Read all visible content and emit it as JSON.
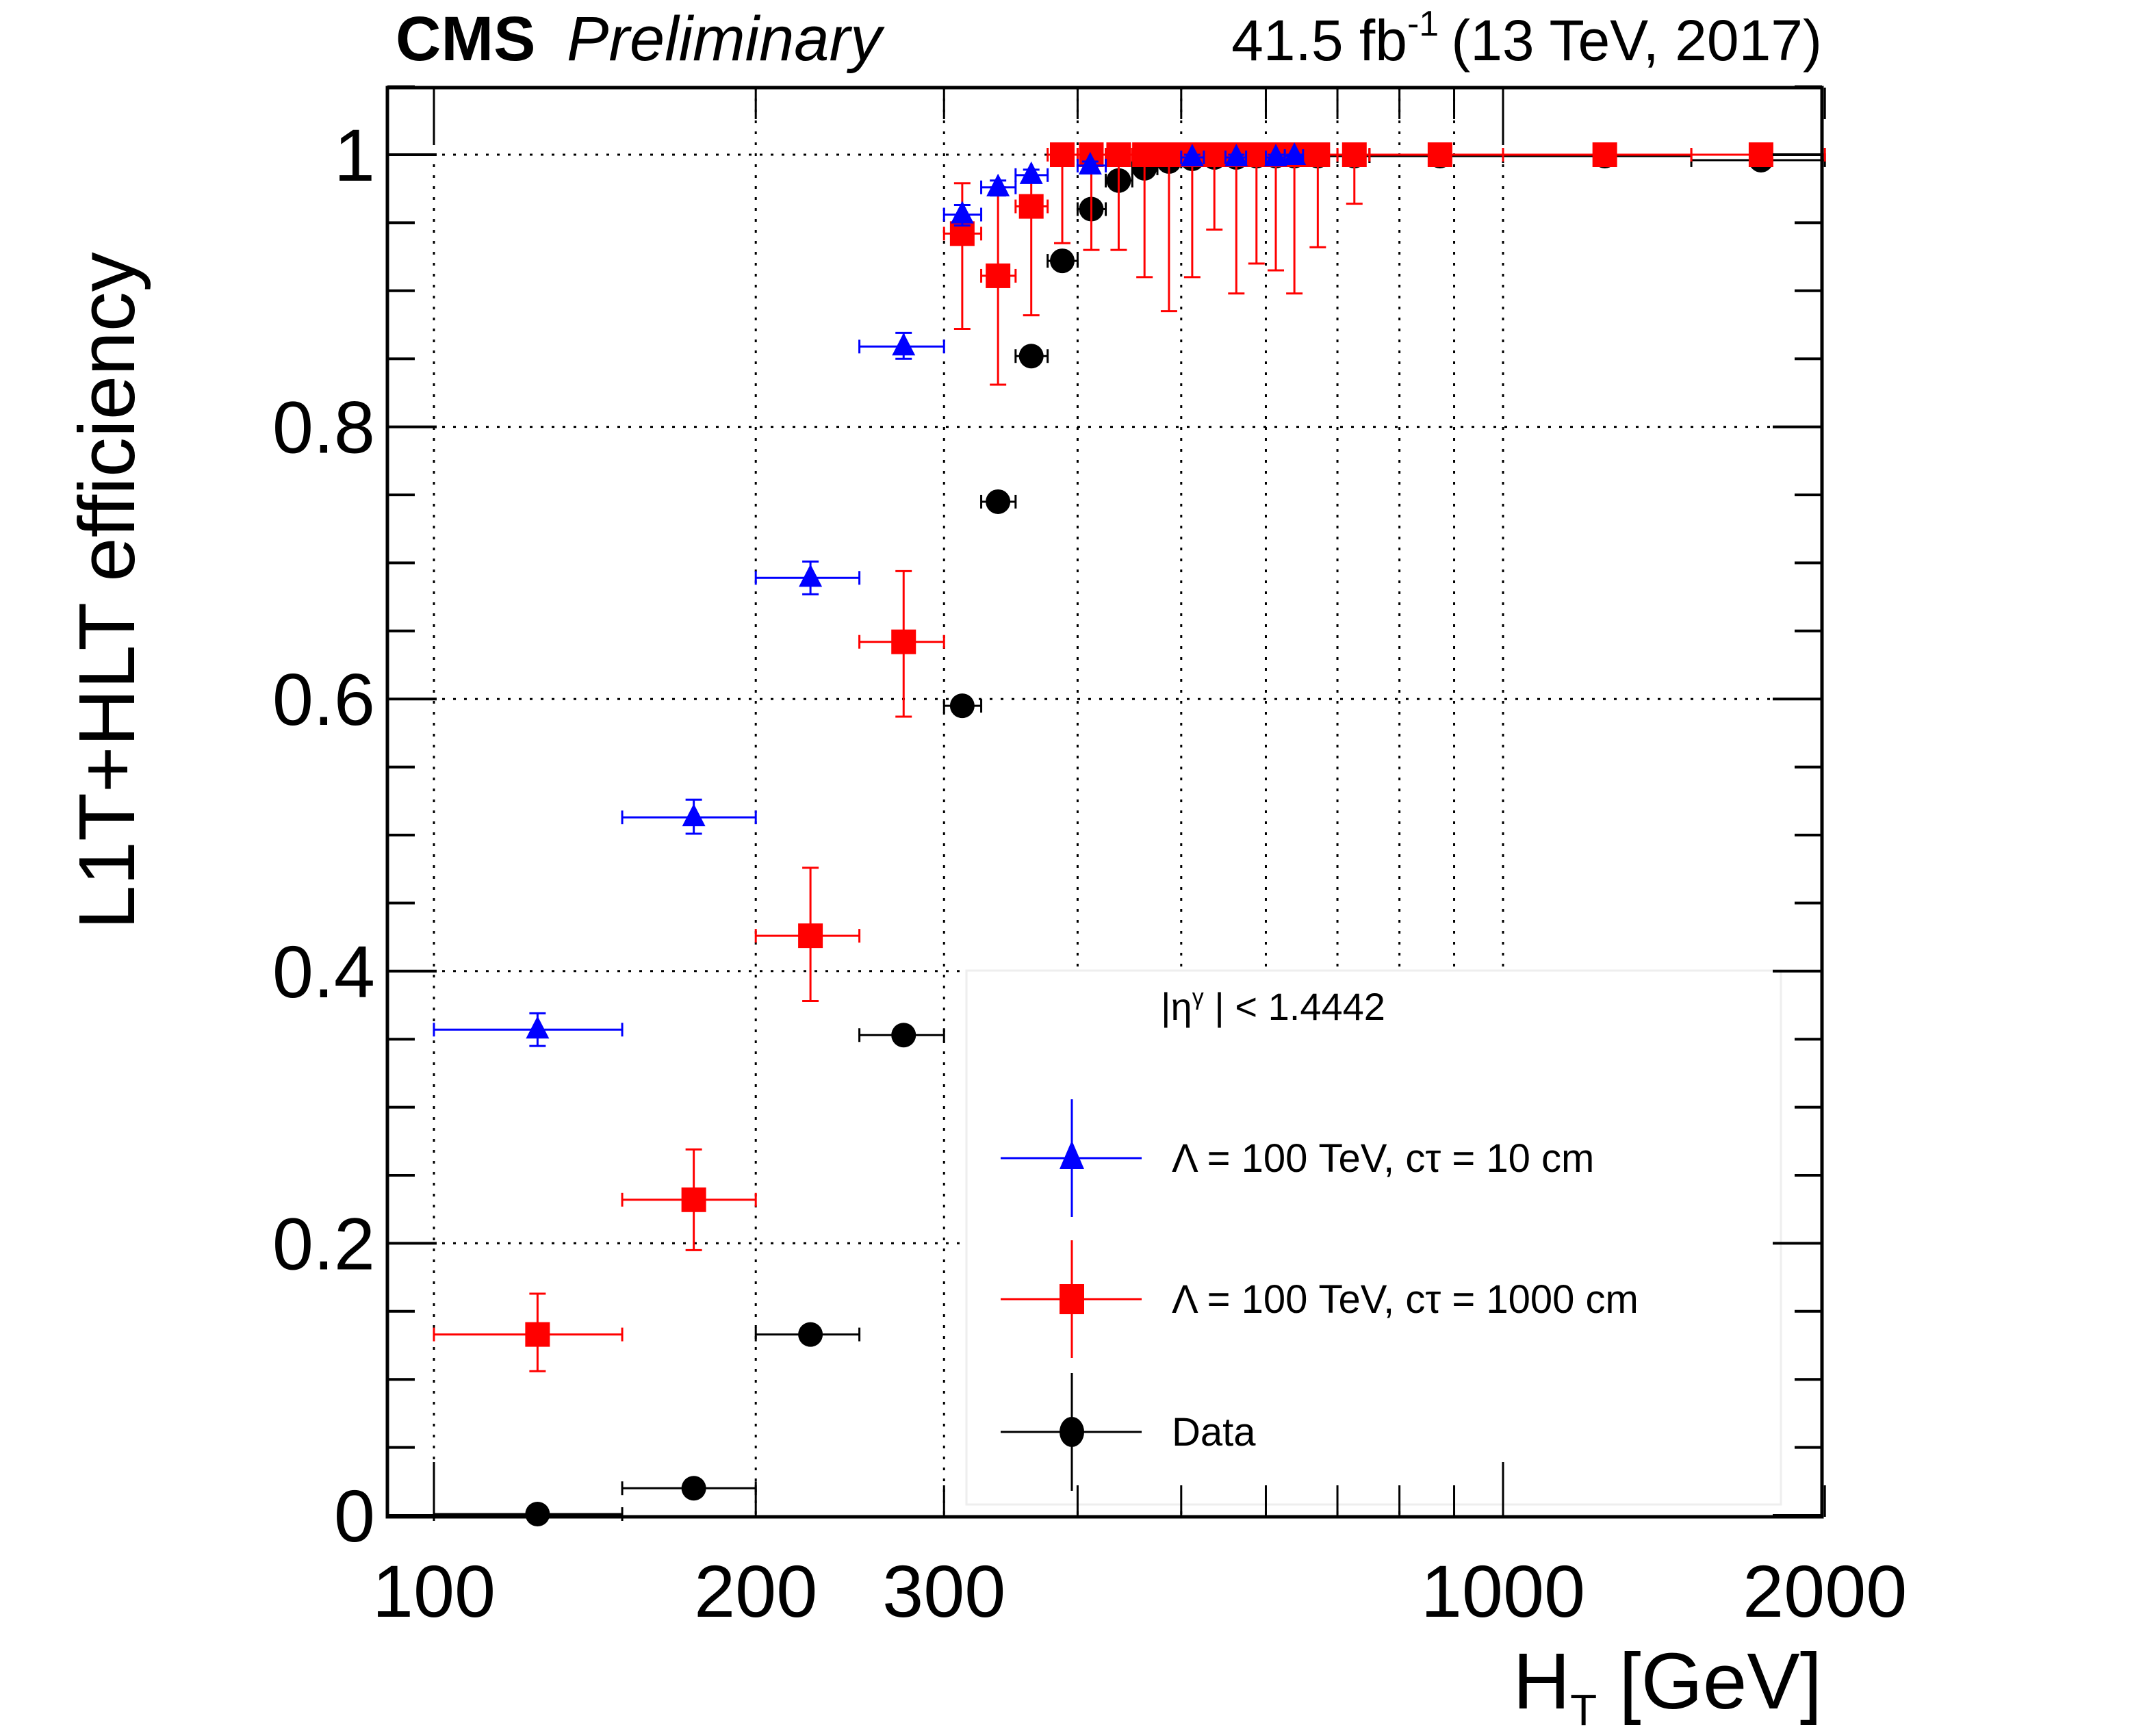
{
  "chart_data": {
    "type": "scatter",
    "title_left_bold": "CMS",
    "title_left_italic": "Preliminary",
    "title_right": {
      "lumi": "41.5 fb",
      "lumi_sup": "-1",
      "rest": "(13 TeV, 2017)"
    },
    "xlabel": {
      "main": "H",
      "sub": "T",
      "rest": " [GeV]"
    },
    "ylabel": "L1T+HLT efficiency",
    "xscale": "log",
    "xlim": [
      90.5,
      2000
    ],
    "ylim": [
      0,
      1.05
    ],
    "grid": true,
    "xticks": [
      100,
      200,
      300,
      1000,
      2000
    ],
    "xtick_labels": [
      "100",
      "200",
      "300",
      "1000",
      "2000"
    ],
    "x_grid_values": [
      100,
      200,
      300,
      400,
      500,
      600,
      700,
      800,
      900,
      1000
    ],
    "yticks": [
      0,
      0.2,
      0.4,
      0.6,
      0.8,
      1
    ],
    "ytick_labels": [
      "0",
      "0.2",
      "0.4",
      "0.6",
      "0.8",
      "1"
    ],
    "legend": {
      "placement": "bottom-right",
      "header": {
        "pre": "|η",
        "sup": "γ",
        "post": " | < 1.4442"
      },
      "entries": [
        {
          "label": "Λ = 100 TeV, cτ = 10 cm",
          "series": 0
        },
        {
          "label": "Λ = 100 TeV, cτ = 1000 cm",
          "series": 1
        },
        {
          "label": "Data",
          "series": 2
        }
      ]
    },
    "series": [
      {
        "name": "Λ = 100 TeV, cτ = 10 cm",
        "color": "#0000ff",
        "marker": "triangle",
        "points": [
          {
            "x": 125,
            "xlo": 100,
            "xhi": 150,
            "y": 0.357,
            "elo": 0.012,
            "ehi": 0.012
          },
          {
            "x": 175,
            "xlo": 150,
            "xhi": 200,
            "y": 0.513,
            "elo": 0.012,
            "ehi": 0.013
          },
          {
            "x": 225,
            "xlo": 200,
            "xhi": 250,
            "y": 0.689,
            "elo": 0.012,
            "ehi": 0.012
          },
          {
            "x": 275,
            "xlo": 250,
            "xhi": 300,
            "y": 0.859,
            "elo": 0.009,
            "ehi": 0.01
          },
          {
            "x": 312,
            "xlo": 300,
            "xhi": 325,
            "y": 0.956,
            "elo": 0.008,
            "ehi": 0.007
          },
          {
            "x": 337,
            "xlo": 325,
            "xhi": 350,
            "y": 0.976,
            "elo": 0.006,
            "ehi": 0.005
          },
          {
            "x": 362,
            "xlo": 350,
            "xhi": 375,
            "y": 0.985,
            "elo": 0.005,
            "ehi": 0.004
          },
          {
            "x": 411,
            "xlo": 400,
            "xhi": 425,
            "y": 0.992,
            "elo": 0.004,
            "ehi": 0.003
          },
          {
            "x": 512,
            "xlo": 500,
            "xhi": 525,
            "y": 0.998,
            "elo": 0.002,
            "ehi": 0.002
          },
          {
            "x": 563,
            "xlo": 550,
            "xhi": 575,
            "y": 0.998,
            "elo": 0.002,
            "ehi": 0.002
          },
          {
            "x": 613,
            "xlo": 600,
            "xhi": 625,
            "y": 0.998,
            "elo": 0.002,
            "ehi": 0.002
          },
          {
            "x": 638,
            "xlo": 625,
            "xhi": 650,
            "y": 0.999,
            "elo": 0.002,
            "ehi": 0.001
          }
        ]
      },
      {
        "name": "Λ = 100 TeV, cτ = 1000 cm",
        "color": "#ff0000",
        "marker": "square",
        "points": [
          {
            "x": 125,
            "xlo": 100,
            "xhi": 150,
            "y": 0.133,
            "elo": 0.027,
            "ehi": 0.03
          },
          {
            "x": 175,
            "xlo": 150,
            "xhi": 200,
            "y": 0.232,
            "elo": 0.037,
            "ehi": 0.037
          },
          {
            "x": 225,
            "xlo": 200,
            "xhi": 250,
            "y": 0.426,
            "elo": 0.048,
            "ehi": 0.05
          },
          {
            "x": 275,
            "xlo": 250,
            "xhi": 300,
            "y": 0.642,
            "elo": 0.055,
            "ehi": 0.052
          },
          {
            "x": 312,
            "xlo": 300,
            "xhi": 325,
            "y": 0.942,
            "elo": 0.07,
            "ehi": 0.037
          },
          {
            "x": 337,
            "xlo": 325,
            "xhi": 350,
            "y": 0.911,
            "elo": 0.08,
            "ehi": 0.065
          },
          {
            "x": 362,
            "xlo": 350,
            "xhi": 375,
            "y": 0.962,
            "elo": 0.08,
            "ehi": 0.02
          },
          {
            "x": 387,
            "xlo": 375,
            "xhi": 400,
            "y": 1.0,
            "elo": 0.065,
            "ehi": 0
          },
          {
            "x": 412,
            "xlo": 400,
            "xhi": 425,
            "y": 1.0,
            "elo": 0.07,
            "ehi": 0
          },
          {
            "x": 437,
            "xlo": 425,
            "xhi": 450,
            "y": 1.0,
            "elo": 0.07,
            "ehi": 0
          },
          {
            "x": 462,
            "xlo": 450,
            "xhi": 475,
            "y": 1.0,
            "elo": 0.09,
            "ehi": 0
          },
          {
            "x": 487,
            "xlo": 475,
            "xhi": 500,
            "y": 1.0,
            "elo": 0.115,
            "ehi": 0
          },
          {
            "x": 512,
            "xlo": 500,
            "xhi": 525,
            "y": 1.0,
            "elo": 0.09,
            "ehi": 0
          },
          {
            "x": 537,
            "xlo": 525,
            "xhi": 550,
            "y": 1.0,
            "elo": 0.055,
            "ehi": 0
          },
          {
            "x": 563,
            "xlo": 550,
            "xhi": 575,
            "y": 1.0,
            "elo": 0.102,
            "ehi": 0
          },
          {
            "x": 588,
            "xlo": 575,
            "xhi": 600,
            "y": 1.0,
            "elo": 0.08,
            "ehi": 0
          },
          {
            "x": 613,
            "xlo": 600,
            "xhi": 625,
            "y": 1.0,
            "elo": 0.085,
            "ehi": 0
          },
          {
            "x": 638,
            "xlo": 625,
            "xhi": 650,
            "y": 1.0,
            "elo": 0.102,
            "ehi": 0
          },
          {
            "x": 671,
            "xlo": 650,
            "xhi": 700,
            "y": 1.0,
            "elo": 0.068,
            "ehi": 0
          },
          {
            "x": 726,
            "xlo": 700,
            "xhi": 750,
            "y": 1.0,
            "elo": 0.036,
            "ehi": 0
          },
          {
            "x": 873,
            "xlo": 750,
            "xhi": 1000,
            "y": 1.0,
            "elo": 0.004,
            "ehi": 0
          },
          {
            "x": 1245,
            "xlo": 1000,
            "xhi": 1500,
            "y": 1.0,
            "elo": 0.003,
            "ehi": 0
          },
          {
            "x": 1743,
            "xlo": 1500,
            "xhi": 2000,
            "y": 1.0,
            "elo": 0.003,
            "ehi": 0
          }
        ]
      },
      {
        "name": "Data",
        "color": "#000000",
        "marker": "circle",
        "points": [
          {
            "x": 125,
            "xlo": 100,
            "xhi": 150,
            "y": 0.001,
            "elo": 0.0005,
            "ehi": 0.0005
          },
          {
            "x": 175,
            "xlo": 150,
            "xhi": 200,
            "y": 0.02,
            "elo": 0.001,
            "ehi": 0.001
          },
          {
            "x": 225,
            "xlo": 200,
            "xhi": 250,
            "y": 0.133,
            "elo": 0.002,
            "ehi": 0.002
          },
          {
            "x": 275,
            "xlo": 250,
            "xhi": 300,
            "y": 0.353,
            "elo": 0.002,
            "ehi": 0.002
          },
          {
            "x": 312,
            "xlo": 300,
            "xhi": 325,
            "y": 0.595,
            "elo": 0.002,
            "ehi": 0.002
          },
          {
            "x": 337,
            "xlo": 325,
            "xhi": 350,
            "y": 0.745,
            "elo": 0.002,
            "ehi": 0.002
          },
          {
            "x": 362,
            "xlo": 350,
            "xhi": 375,
            "y": 0.852,
            "elo": 0.002,
            "ehi": 0.002
          },
          {
            "x": 387,
            "xlo": 375,
            "xhi": 400,
            "y": 0.922,
            "elo": 0.002,
            "ehi": 0.002
          },
          {
            "x": 412,
            "xlo": 400,
            "xhi": 425,
            "y": 0.96,
            "elo": 0.002,
            "ehi": 0.002
          },
          {
            "x": 437,
            "xlo": 425,
            "xhi": 450,
            "y": 0.981,
            "elo": 0.001,
            "ehi": 0.001
          },
          {
            "x": 462,
            "xlo": 450,
            "xhi": 475,
            "y": 0.99,
            "elo": 0.001,
            "ehi": 0.001
          },
          {
            "x": 487,
            "xlo": 475,
            "xhi": 500,
            "y": 0.995,
            "elo": 0.001,
            "ehi": 0.001
          },
          {
            "x": 512,
            "xlo": 500,
            "xhi": 525,
            "y": 0.997,
            "elo": 0.001,
            "ehi": 0.001
          },
          {
            "x": 537,
            "xlo": 525,
            "xhi": 550,
            "y": 0.998,
            "elo": 0.001,
            "ehi": 0.001
          },
          {
            "x": 563,
            "xlo": 550,
            "xhi": 575,
            "y": 0.998,
            "elo": 0.001,
            "ehi": 0.001
          },
          {
            "x": 588,
            "xlo": 575,
            "xhi": 600,
            "y": 0.999,
            "elo": 0.001,
            "ehi": 0.001
          },
          {
            "x": 613,
            "xlo": 600,
            "xhi": 625,
            "y": 0.999,
            "elo": 0.001,
            "ehi": 0.001
          },
          {
            "x": 638,
            "xlo": 625,
            "xhi": 650,
            "y": 0.999,
            "elo": 0.001,
            "ehi": 0.001
          },
          {
            "x": 671,
            "xlo": 650,
            "xhi": 700,
            "y": 0.999,
            "elo": 0.001,
            "ehi": 0.001
          },
          {
            "x": 726,
            "xlo": 700,
            "xhi": 750,
            "y": 0.999,
            "elo": 0.001,
            "ehi": 0.001
          },
          {
            "x": 873,
            "xlo": 750,
            "xhi": 1000,
            "y": 0.999,
            "elo": 0.001,
            "ehi": 0.001
          },
          {
            "x": 1245,
            "xlo": 1000,
            "xhi": 1500,
            "y": 0.999,
            "elo": 0.001,
            "ehi": 0.001
          },
          {
            "x": 1743,
            "xlo": 1500,
            "xhi": 2000,
            "y": 0.996,
            "elo": 0.003,
            "ehi": 0.003
          }
        ]
      }
    ]
  }
}
